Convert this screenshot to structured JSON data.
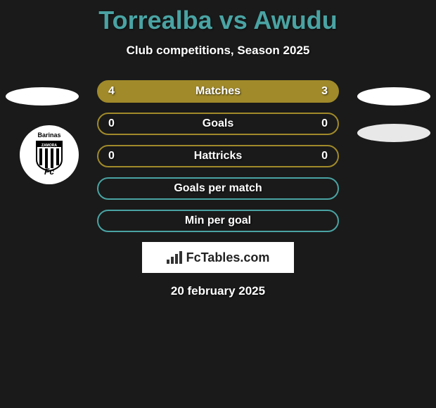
{
  "title": "Torrealba vs Awudu",
  "subtitle": "Club competitions, Season 2025",
  "rows": [
    {
      "label": "Matches",
      "left": "4",
      "right": "3",
      "background": "#a08a2a",
      "border": "#a08a2a"
    },
    {
      "label": "Goals",
      "left": "0",
      "right": "0",
      "background": "transparent",
      "border": "#a08a2a"
    },
    {
      "label": "Hattricks",
      "left": "0",
      "right": "0",
      "background": "transparent",
      "border": "#a08a2a"
    },
    {
      "label": "Goals per match",
      "left": "",
      "right": "",
      "background": "transparent",
      "border": "#4aa3a3"
    },
    {
      "label": "Min per goal",
      "left": "",
      "right": "",
      "background": "transparent",
      "border": "#4aa3a3"
    }
  ],
  "badge_text": "FcTables.com",
  "date": "20 february 2025",
  "club_top_text": "Barinas",
  "club_mid_text": "ZAMORA",
  "club_bottom_text": "Fc",
  "colors": {
    "title": "#4aa3a3",
    "background": "#1a1a1a",
    "olive": "#a08a2a",
    "teal": "#4aa3a3"
  }
}
